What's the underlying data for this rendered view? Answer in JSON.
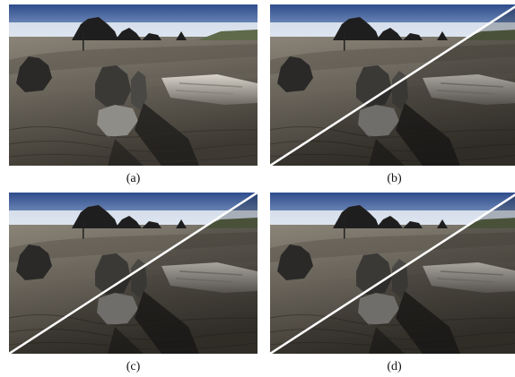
{
  "figure": {
    "panels": [
      {
        "id": "a",
        "caption": "(a)",
        "split": false
      },
      {
        "id": "b",
        "caption": "(b)",
        "split": true
      },
      {
        "id": "c",
        "caption": "(c)",
        "split": true
      },
      {
        "id": "d",
        "caption": "(d)",
        "split": true
      }
    ]
  },
  "colors": {
    "sky_top": "#2f4d8c",
    "sky_bottom": "#9fb6d8",
    "fog": "#e9eef5",
    "sand_light": "#8a8478",
    "sand_dark": "#3e3a33",
    "rock": "#1f1e1f",
    "driftwood": "#d8d4cc",
    "split_line": "#ffffff"
  }
}
